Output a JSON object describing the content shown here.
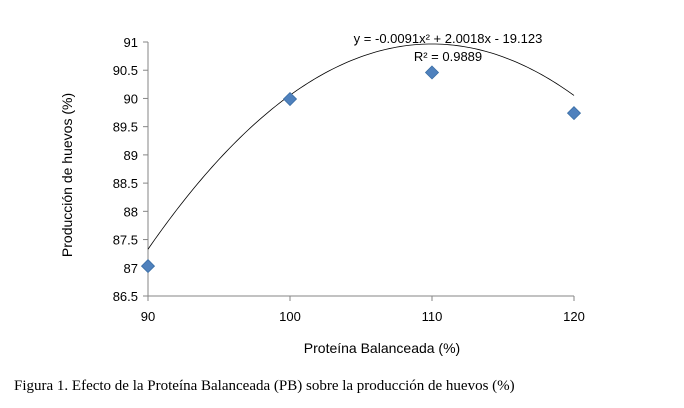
{
  "chart_data": {
    "type": "scatter",
    "x": [
      90,
      100,
      110,
      120
    ],
    "y": [
      87.03,
      89.99,
      90.46,
      89.74
    ],
    "xlabel": "Proteína Balanceada (%)",
    "ylabel": "Producción de huevos (%)",
    "xlim": [
      90,
      120
    ],
    "ylim": [
      86.5,
      91
    ],
    "x_ticks": [
      "90",
      "100",
      "110",
      "120"
    ],
    "y_ticks": [
      "86.5",
      "87",
      "87.5",
      "88",
      "88.5",
      "89",
      "89.5",
      "90",
      "90.5",
      "91"
    ],
    "point_color": "#4f81bd",
    "trendline": {
      "type": "polynomial",
      "order": 2,
      "coefficients": [
        -0.0091,
        2.0018,
        -19.123
      ],
      "equation": "y = -0.0091x² + 2.0018x - 19.123",
      "r_squared": "R² = 0.9889"
    },
    "grid": false
  },
  "caption": "Figura 1. Efecto de la Proteína Balanceada (PB) sobre la producción de huevos (%)"
}
